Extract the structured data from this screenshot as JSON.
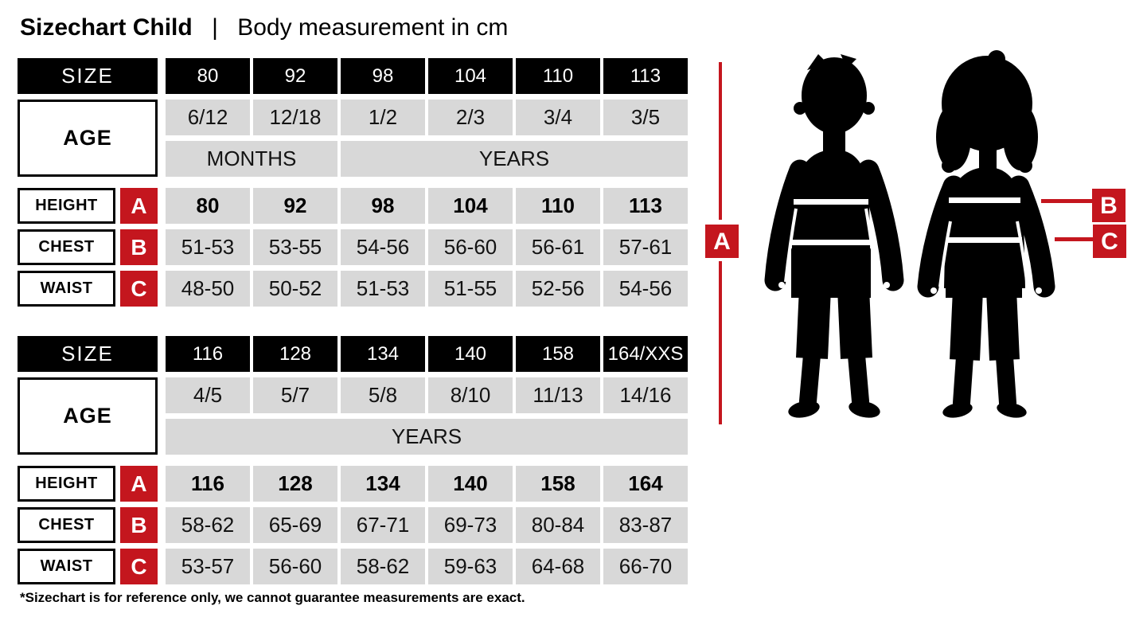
{
  "header": {
    "title_bold": "Sizechart Child",
    "separator": "|",
    "title_rest": "Body measurement in cm"
  },
  "colors": {
    "accent_red": "#c4161e",
    "cell_gray": "#d8d8d8",
    "black": "#000000"
  },
  "tables": [
    {
      "size_label": "SIZE",
      "age_label": "AGE",
      "sizes": [
        "80",
        "92",
        "98",
        "104",
        "110",
        "113"
      ],
      "ages": [
        "6/12",
        "12/18",
        "1/2",
        "2/3",
        "3/4",
        "3/5"
      ],
      "age_units": [
        {
          "label": "MONTHS",
          "span": 2
        },
        {
          "label": "YEARS",
          "span": 4
        }
      ],
      "rows": [
        {
          "label": "HEIGHT",
          "letter": "A",
          "bold": true,
          "values": [
            "80",
            "92",
            "98",
            "104",
            "110",
            "113"
          ]
        },
        {
          "label": "CHEST",
          "letter": "B",
          "bold": false,
          "values": [
            "51-53",
            "53-55",
            "54-56",
            "56-60",
            "56-61",
            "57-61"
          ]
        },
        {
          "label": "WAIST",
          "letter": "C",
          "bold": false,
          "values": [
            "48-50",
            "50-52",
            "51-53",
            "51-55",
            "52-56",
            "54-56"
          ]
        }
      ]
    },
    {
      "size_label": "SIZE",
      "age_label": "AGE",
      "sizes": [
        "116",
        "128",
        "134",
        "140",
        "158",
        "164/XXS"
      ],
      "ages": [
        "4/5",
        "5/7",
        "5/8",
        "8/10",
        "11/13",
        "14/16"
      ],
      "age_units": [
        {
          "label": "YEARS",
          "span": 6
        }
      ],
      "rows": [
        {
          "label": "HEIGHT",
          "letter": "A",
          "bold": true,
          "values": [
            "116",
            "128",
            "134",
            "140",
            "158",
            "164"
          ]
        },
        {
          "label": "CHEST",
          "letter": "B",
          "bold": false,
          "values": [
            "58-62",
            "65-69",
            "67-71",
            "69-73",
            "80-84",
            "83-87"
          ]
        },
        {
          "label": "WAIST",
          "letter": "C",
          "bold": false,
          "values": [
            "53-57",
            "56-60",
            "58-62",
            "59-63",
            "64-68",
            "66-70"
          ]
        }
      ]
    }
  ],
  "diagram": {
    "labels": {
      "a": "A",
      "b": "B",
      "c": "C"
    }
  },
  "footnote": "*Sizechart is for reference only, we cannot guarantee measurements are exact."
}
